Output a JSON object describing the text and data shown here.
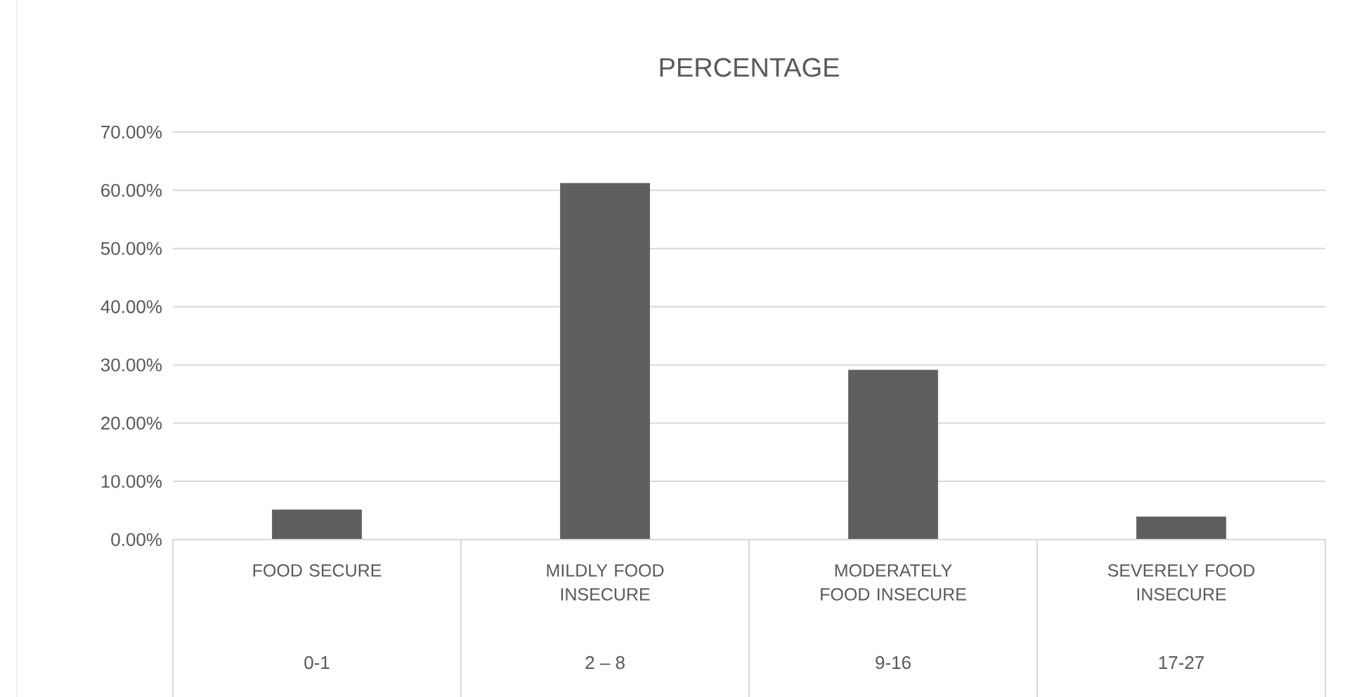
{
  "chart_data": {
    "type": "bar",
    "title": "PERCENTAGE",
    "categories": [
      "FOOD SECURE",
      "MILDLY FOOD INSECURE",
      "MODERATELY FOOD INSECURE",
      "SEVERELY FOOD INSECURE"
    ],
    "values": [
      5.1,
      61.2,
      29.1,
      3.9
    ],
    "color": "#5f5f5f",
    "ylim": [
      0,
      70
    ],
    "yticks": [
      {
        "value": 0,
        "label": "0.00%"
      },
      {
        "value": 10,
        "label": "10.00%"
      },
      {
        "value": 20,
        "label": "20.00%"
      },
      {
        "value": 30,
        "label": "30.00%"
      },
      {
        "value": 40,
        "label": "40.00%"
      },
      {
        "value": 50,
        "label": "50.00%"
      },
      {
        "value": 60,
        "label": "60.00%"
      },
      {
        "value": 70,
        "label": "70.00%"
      }
    ],
    "grid": "y",
    "annotations": [
      "0-1",
      "2 – 8",
      "9-16",
      "17-27"
    ]
  }
}
